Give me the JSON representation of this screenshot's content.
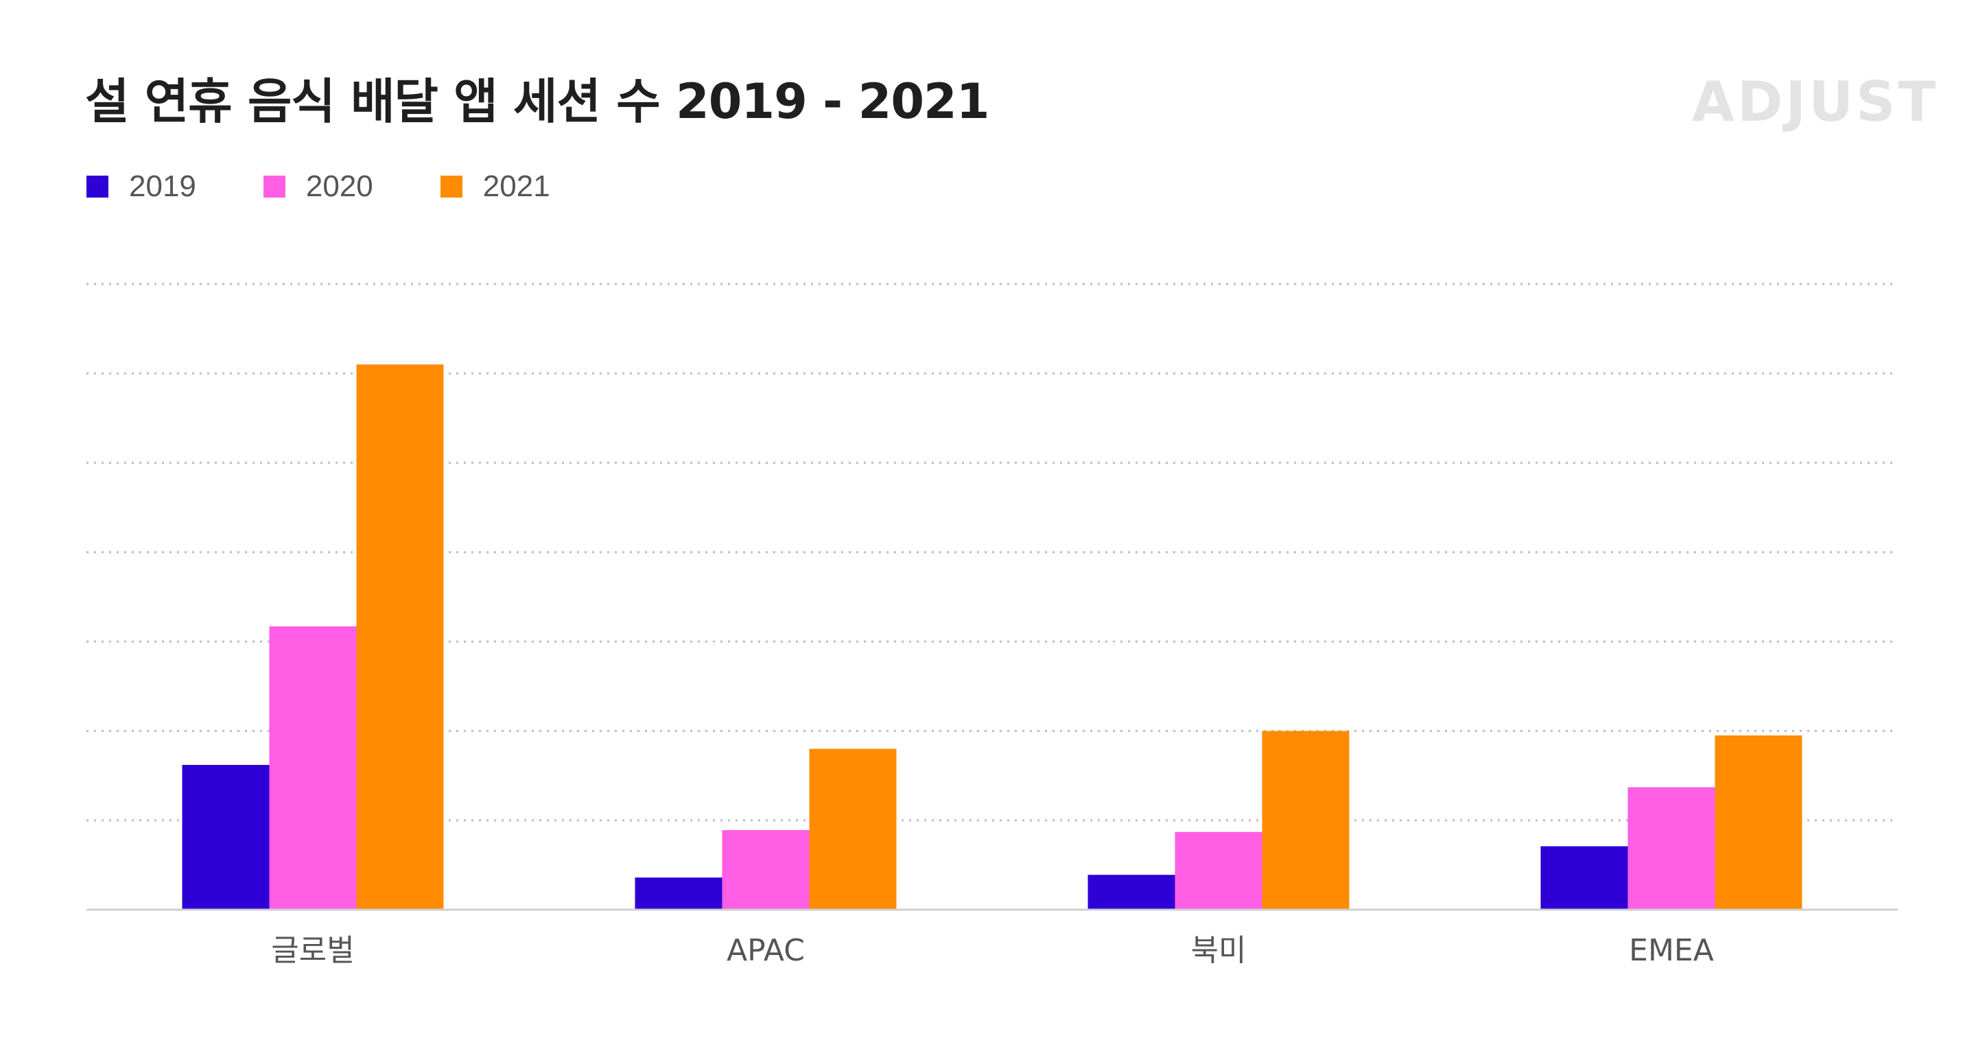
{
  "header": {
    "title": "설 연휴 음식 배달 앱 세션 수 2019 - 2021",
    "logo_text": "ADJUST"
  },
  "chart_data": {
    "type": "bar",
    "title": "설 연휴 음식 배달 앱 세션 수 2019 - 2021",
    "xlabel": "",
    "ylabel": "",
    "categories": [
      "글로벌",
      "APAC",
      "북미",
      "EMEA"
    ],
    "series": [
      {
        "name": "2019",
        "color": "#2e00d6",
        "values": [
          1.62,
          0.36,
          0.39,
          0.71
        ]
      },
      {
        "name": "2020",
        "color": "#ff5ee5",
        "values": [
          3.17,
          0.89,
          0.87,
          1.37
        ]
      },
      {
        "name": "2021",
        "color": "#ff8c00",
        "values": [
          6.1,
          1.8,
          2.0,
          1.95
        ]
      }
    ],
    "ylim": [
      0,
      7
    ],
    "gridlines": [
      1,
      2,
      3,
      4,
      5,
      6,
      7
    ],
    "grid": true,
    "y_tick_labels_shown": false,
    "legend_position": "top-left"
  }
}
